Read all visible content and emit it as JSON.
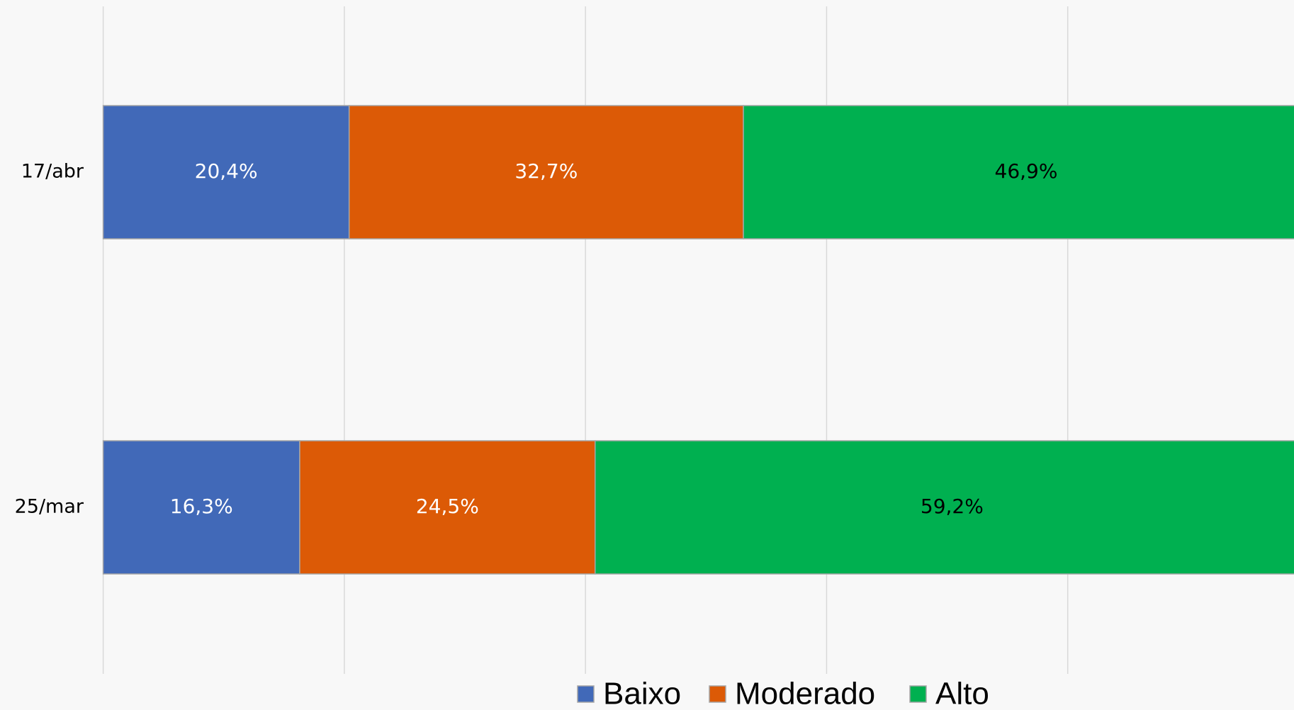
{
  "chart_data": {
    "type": "stacked_barh",
    "categories": [
      "17/abr",
      "25/mar"
    ],
    "series": [
      {
        "name": "Baixo",
        "color": "#4169b8",
        "label_color": "#ffffff",
        "values": [
          20.4,
          16.3
        ],
        "value_labels": [
          "20,4%",
          "16,3%"
        ]
      },
      {
        "name": "Moderado",
        "color": "#dc5a06",
        "label_color": "#ffffff",
        "values": [
          32.7,
          24.5
        ],
        "value_labels": [
          "32,7%",
          "24,5%"
        ]
      },
      {
        "name": "Alto",
        "color": "#00b050",
        "label_color": "#000000",
        "values": [
          46.9,
          59.2
        ],
        "value_labels": [
          "46,9%",
          "59,2%"
        ]
      }
    ],
    "xlim": [
      0,
      100
    ],
    "xticks": [
      0,
      20,
      40,
      60,
      80,
      100
    ],
    "grid": true,
    "legend": "bottom"
  }
}
